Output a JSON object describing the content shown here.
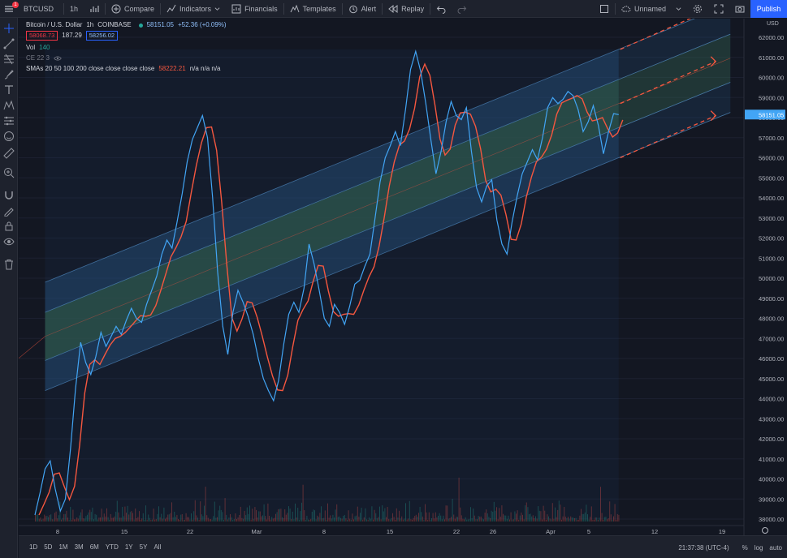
{
  "toolbar": {
    "symbol": "BTCUSD",
    "interval": "1h",
    "compare": "Compare",
    "indicators": "Indicators",
    "financials": "Financials",
    "templates": "Templates",
    "alert": "Alert",
    "replay": "Replay",
    "layout_name": "Unnamed",
    "publish": "Publish",
    "notification_count": "1"
  },
  "legend": {
    "title": "Bitcoin / U.S. Dollar",
    "interval": "1h",
    "exchange": "COINBASE",
    "last_price": "58151.05",
    "change": "+52.36 (+0.09%)",
    "bid": "58068.73",
    "spread": "187.29",
    "ask": "58256.02",
    "vol_label": "Vol",
    "vol_value": "140",
    "ce_label": "CE 22 3",
    "sma_label": "SMAs 20 50 100 200 close close close close",
    "sma_value": "58222.21",
    "sma_na": "n/a n/a n/a"
  },
  "chart_data": {
    "type": "line",
    "price_axis": {
      "unit": "USD",
      "min": 38000,
      "max": 62000,
      "ticks": [
        38000,
        39000,
        40000,
        41000,
        42000,
        43000,
        44000,
        45000,
        46000,
        47000,
        48000,
        49000,
        50000,
        51000,
        52000,
        53000,
        54000,
        55000,
        56000,
        57000,
        58000,
        59000,
        60000,
        61000,
        62000
      ]
    },
    "time_axis": {
      "labels": [
        "8",
        "15",
        "22",
        "Mar",
        "8",
        "15",
        "22",
        "26",
        "Apr",
        "5",
        "12",
        "19"
      ]
    },
    "price_series": [
      [
        0,
        38200
      ],
      [
        1,
        39300
      ],
      [
        2,
        40500
      ],
      [
        3,
        40900
      ],
      [
        4,
        39500
      ],
      [
        5,
        38400
      ],
      [
        6,
        39000
      ],
      [
        7,
        41500
      ],
      [
        8,
        44500
      ],
      [
        9,
        46800
      ],
      [
        10,
        45800
      ],
      [
        11,
        45200
      ],
      [
        12,
        46100
      ],
      [
        13,
        47300
      ],
      [
        14,
        46600
      ],
      [
        15,
        47100
      ],
      [
        16,
        47600
      ],
      [
        17,
        47200
      ],
      [
        18,
        47900
      ],
      [
        19,
        48500
      ],
      [
        20,
        48000
      ],
      [
        21,
        47800
      ],
      [
        22,
        48700
      ],
      [
        23,
        49400
      ],
      [
        24,
        50100
      ],
      [
        25,
        51200
      ],
      [
        26,
        51900
      ],
      [
        27,
        51500
      ],
      [
        28,
        52800
      ],
      [
        29,
        54200
      ],
      [
        30,
        55800
      ],
      [
        31,
        56900
      ],
      [
        32,
        57500
      ],
      [
        33,
        58100
      ],
      [
        34,
        57000
      ],
      [
        35,
        54000
      ],
      [
        36,
        50300
      ],
      [
        37,
        47600
      ],
      [
        38,
        46200
      ],
      [
        39,
        48300
      ],
      [
        40,
        49400
      ],
      [
        41,
        48800
      ],
      [
        42,
        48100
      ],
      [
        43,
        47200
      ],
      [
        44,
        46000
      ],
      [
        45,
        45000
      ],
      [
        46,
        44400
      ],
      [
        47,
        43900
      ],
      [
        48,
        44900
      ],
      [
        49,
        46700
      ],
      [
        50,
        48200
      ],
      [
        51,
        48800
      ],
      [
        52,
        48300
      ],
      [
        53,
        49500
      ],
      [
        54,
        51700
      ],
      [
        55,
        50700
      ],
      [
        56,
        49400
      ],
      [
        57,
        48000
      ],
      [
        58,
        47600
      ],
      [
        59,
        48700
      ],
      [
        60,
        48300
      ],
      [
        61,
        47700
      ],
      [
        62,
        48600
      ],
      [
        63,
        49700
      ],
      [
        64,
        49900
      ],
      [
        65,
        50600
      ],
      [
        66,
        51200
      ],
      [
        67,
        53000
      ],
      [
        68,
        54800
      ],
      [
        69,
        56000
      ],
      [
        70,
        56600
      ],
      [
        71,
        57300
      ],
      [
        72,
        56600
      ],
      [
        73,
        58400
      ],
      [
        74,
        60400
      ],
      [
        75,
        61300
      ],
      [
        76,
        60300
      ],
      [
        77,
        58700
      ],
      [
        78,
        56900
      ],
      [
        79,
        55200
      ],
      [
        80,
        56300
      ],
      [
        81,
        57800
      ],
      [
        82,
        58800
      ],
      [
        83,
        58100
      ],
      [
        84,
        57900
      ],
      [
        85,
        58500
      ],
      [
        86,
        56300
      ],
      [
        87,
        54500
      ],
      [
        88,
        53800
      ],
      [
        89,
        54600
      ],
      [
        90,
        54900
      ],
      [
        91,
        52900
      ],
      [
        92,
        51700
      ],
      [
        93,
        51200
      ],
      [
        94,
        52800
      ],
      [
        95,
        54100
      ],
      [
        96,
        55200
      ],
      [
        97,
        55800
      ],
      [
        98,
        56400
      ],
      [
        99,
        55900
      ],
      [
        100,
        57000
      ],
      [
        101,
        58500
      ],
      [
        102,
        59000
      ],
      [
        103,
        58700
      ],
      [
        104,
        58900
      ],
      [
        105,
        59300
      ],
      [
        106,
        59100
      ],
      [
        107,
        58400
      ],
      [
        108,
        57300
      ],
      [
        109,
        57800
      ],
      [
        110,
        58600
      ],
      [
        111,
        57600
      ],
      [
        112,
        56200
      ],
      [
        113,
        57300
      ],
      [
        114,
        58200
      ],
      [
        115,
        58151
      ]
    ],
    "channel": {
      "start_index": 2,
      "end_index": 115,
      "center_start": 47100,
      "center_end": 58700,
      "outer_offset": 2700,
      "inner_offset": 1200,
      "projection_end_index": 137
    },
    "colors": {
      "price_line": "#42a5f5",
      "sma_line": "#f5573f",
      "channel_fill": "#2a5b8a",
      "inner_fill": "#3b6b2f",
      "channel_border": "#5b9bd5",
      "arrow": "#f5573f",
      "background": "#131722"
    }
  },
  "bottombar": {
    "ranges": [
      "1D",
      "5D",
      "1M",
      "3M",
      "6M",
      "YTD",
      "1Y",
      "5Y",
      "All"
    ],
    "clock": "21:37:38 (UTC-4)",
    "percent": "%",
    "log": "log",
    "auto": "auto"
  }
}
